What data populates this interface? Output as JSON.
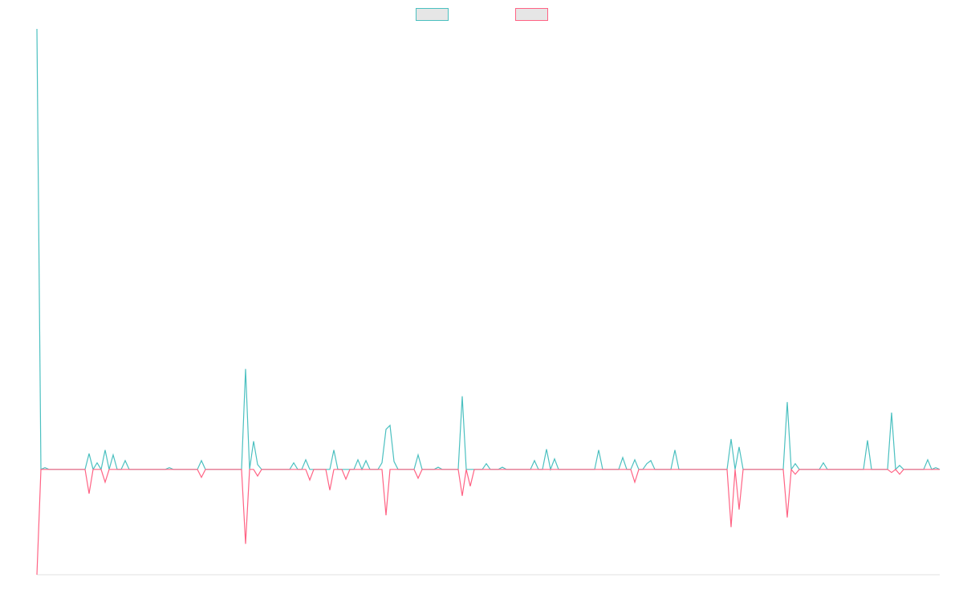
{
  "chart_data": {
    "type": "line",
    "ylim": [
      -23.9,
      100
    ],
    "legend": "top",
    "series": [
      {
        "color": "#4bc0c0",
        "values": [
          100,
          0,
          0.4,
          0,
          0,
          0,
          0,
          0,
          0,
          0,
          0,
          0,
          0,
          3.6,
          0,
          1.5,
          0,
          4.4,
          0,
          3.3,
          0,
          0,
          2,
          0,
          0,
          0,
          0,
          0,
          0,
          0,
          0,
          0,
          0,
          0.4,
          0,
          0,
          0,
          0,
          0,
          0,
          0,
          2,
          0,
          0,
          0,
          0,
          0,
          0,
          0,
          0,
          0,
          0,
          22.8,
          0,
          6.4,
          1.1,
          0,
          0,
          0,
          0,
          0,
          0,
          0,
          0,
          1.5,
          0,
          0,
          2.2,
          0,
          0,
          0,
          0,
          0,
          0,
          4.4,
          0,
          0,
          0,
          0,
          0,
          2.2,
          0,
          2,
          0,
          0,
          0,
          1.5,
          9.1,
          10,
          1.8,
          0,
          0,
          0,
          0,
          0,
          3.3,
          0,
          0,
          0,
          0,
          0.5,
          0,
          0,
          0,
          0,
          0,
          16.6,
          0,
          0,
          0,
          0,
          0,
          1.3,
          0,
          0,
          0,
          0.5,
          0,
          0,
          0,
          0,
          0,
          0,
          0,
          2,
          0,
          0,
          4.6,
          0,
          2.4,
          0,
          0,
          0,
          0,
          0,
          0,
          0,
          0,
          0,
          0,
          4.4,
          0,
          0,
          0,
          0,
          0,
          2.7,
          0,
          0,
          2.2,
          0,
          0,
          1.3,
          2,
          0,
          0,
          0,
          0,
          0,
          4.4,
          0,
          0,
          0,
          0,
          0,
          0,
          0,
          0,
          0,
          0,
          0,
          0,
          0,
          6.9,
          0,
          5.1,
          0,
          0,
          0,
          0,
          0,
          0,
          0,
          0,
          0,
          0,
          0,
          15.3,
          0,
          1.3,
          0,
          0,
          0,
          0,
          0,
          0,
          1.5,
          0,
          0,
          0,
          0,
          0,
          0,
          0,
          0,
          0,
          0,
          6.6,
          0,
          0,
          0,
          0,
          0,
          12.9,
          0,
          0.9,
          0,
          0,
          0,
          0,
          0,
          0,
          2.2,
          0,
          0.4,
          0
        ]
      },
      {
        "color": "#ff6384",
        "values": [
          -23.9,
          0,
          0,
          0,
          0,
          0,
          0,
          0,
          0,
          0,
          0,
          0,
          0,
          -5.5,
          0,
          0,
          0,
          -2.9,
          0,
          0,
          0,
          0,
          0,
          0,
          0,
          0,
          0,
          0,
          0,
          0,
          0,
          0,
          0,
          0,
          0,
          0,
          0,
          0,
          0,
          0,
          0,
          -1.8,
          0,
          0,
          0,
          0,
          0,
          0,
          0,
          0,
          0,
          0,
          -16.9,
          0,
          0,
          -1.5,
          0,
          0,
          0,
          0,
          0,
          0,
          0,
          0,
          0,
          0,
          0,
          0,
          -2.4,
          0,
          0,
          0,
          0,
          -4.7,
          0,
          0,
          0,
          -2.2,
          0,
          0,
          0,
          0,
          0,
          0,
          0,
          0,
          0,
          -10.4,
          0,
          0,
          0,
          0,
          0,
          0,
          0,
          -2,
          0,
          0,
          0,
          0,
          0,
          0,
          0,
          0,
          0,
          0,
          -6,
          0,
          -3.8,
          0,
          0,
          0,
          0,
          0,
          0,
          0,
          0,
          0,
          0,
          0,
          0,
          0,
          0,
          0,
          0,
          0,
          0,
          0,
          0,
          0,
          0,
          0,
          0,
          0,
          0,
          0,
          0,
          0,
          0,
          0,
          0,
          0,
          0,
          0,
          0,
          0,
          0,
          0,
          0,
          -2.9,
          0,
          0,
          0,
          0,
          0,
          0,
          0,
          0,
          0,
          0,
          0,
          0,
          0,
          0,
          0,
          0,
          0,
          0,
          0,
          0,
          0,
          0,
          0,
          -13.1,
          0,
          -9.1,
          0,
          0,
          0,
          0,
          0,
          0,
          0,
          0,
          0,
          0,
          0,
          -10.9,
          0,
          -1.1,
          0,
          0,
          0,
          0,
          0,
          0,
          0,
          0,
          0,
          0,
          0,
          0,
          0,
          0,
          0,
          0,
          0,
          0,
          0,
          0,
          0,
          0,
          0,
          -0.7,
          0,
          -1.1,
          0,
          0,
          0,
          0,
          0,
          0,
          0,
          0,
          0,
          0
        ]
      }
    ]
  }
}
